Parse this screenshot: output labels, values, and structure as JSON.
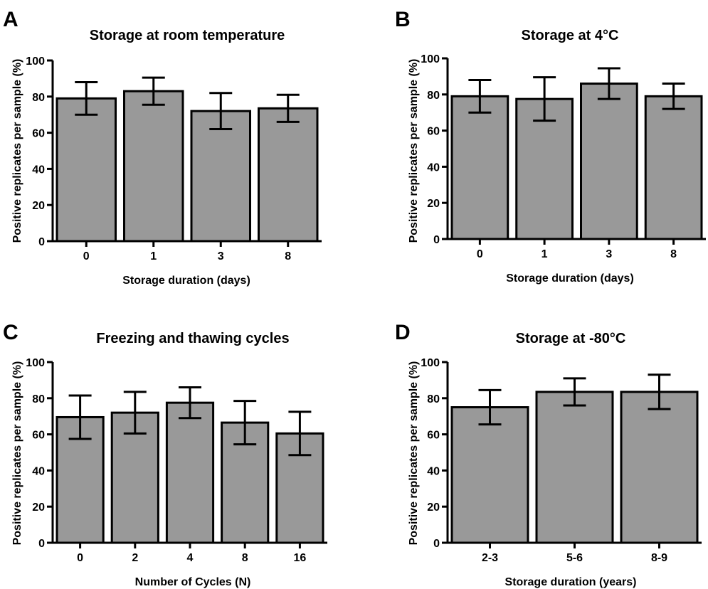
{
  "chart_data": [
    {
      "panel": "A",
      "type": "bar",
      "title": "Storage at room temperature",
      "xlabel": "Storage duration (days)",
      "ylabel": "Positive replicates per sample (%)",
      "ylim": [
        0,
        100
      ],
      "yticks": [
        0,
        20,
        40,
        60,
        80,
        100
      ],
      "categories": [
        "0",
        "1",
        "3",
        "8"
      ],
      "values": [
        79,
        83,
        72,
        73.5
      ],
      "errors": [
        9,
        7.5,
        10,
        7.5
      ],
      "grid": false,
      "bar_color": "#999999"
    },
    {
      "panel": "B",
      "type": "bar",
      "title": "Storage at 4°C",
      "xlabel": "Storage duration (days)",
      "ylabel": "Positive replicates per sample (%)",
      "ylim": [
        0,
        100
      ],
      "yticks": [
        0,
        20,
        40,
        60,
        80,
        100
      ],
      "categories": [
        "0",
        "1",
        "3",
        "8"
      ],
      "values": [
        79,
        77.5,
        86,
        79
      ],
      "errors": [
        9,
        12,
        8.5,
        7
      ],
      "grid": false,
      "bar_color": "#999999"
    },
    {
      "panel": "C",
      "type": "bar",
      "title": "Freezing and thawing cycles",
      "xlabel": "Number of Cycles (N)",
      "ylabel": "Positive replicates per sample (%)",
      "ylim": [
        0,
        100
      ],
      "yticks": [
        0,
        20,
        40,
        60,
        80,
        100
      ],
      "categories": [
        "0",
        "2",
        "4",
        "8",
        "16"
      ],
      "values": [
        69.5,
        72,
        77.5,
        66.5,
        60.5
      ],
      "errors": [
        12,
        11.5,
        8.5,
        12,
        12
      ],
      "grid": false,
      "bar_color": "#999999"
    },
    {
      "panel": "D",
      "type": "bar",
      "title": "Storage at -80°C",
      "xlabel": "Storage duration (years)",
      "ylabel": "Positive replicates per sample (%)",
      "ylim": [
        0,
        100
      ],
      "yticks": [
        0,
        20,
        40,
        60,
        80,
        100
      ],
      "categories": [
        "2-3",
        "5-6",
        "8-9"
      ],
      "values": [
        75,
        83.5,
        83.5
      ],
      "errors": [
        9.5,
        7.5,
        9.5
      ],
      "grid": false,
      "bar_color": "#999999"
    }
  ]
}
